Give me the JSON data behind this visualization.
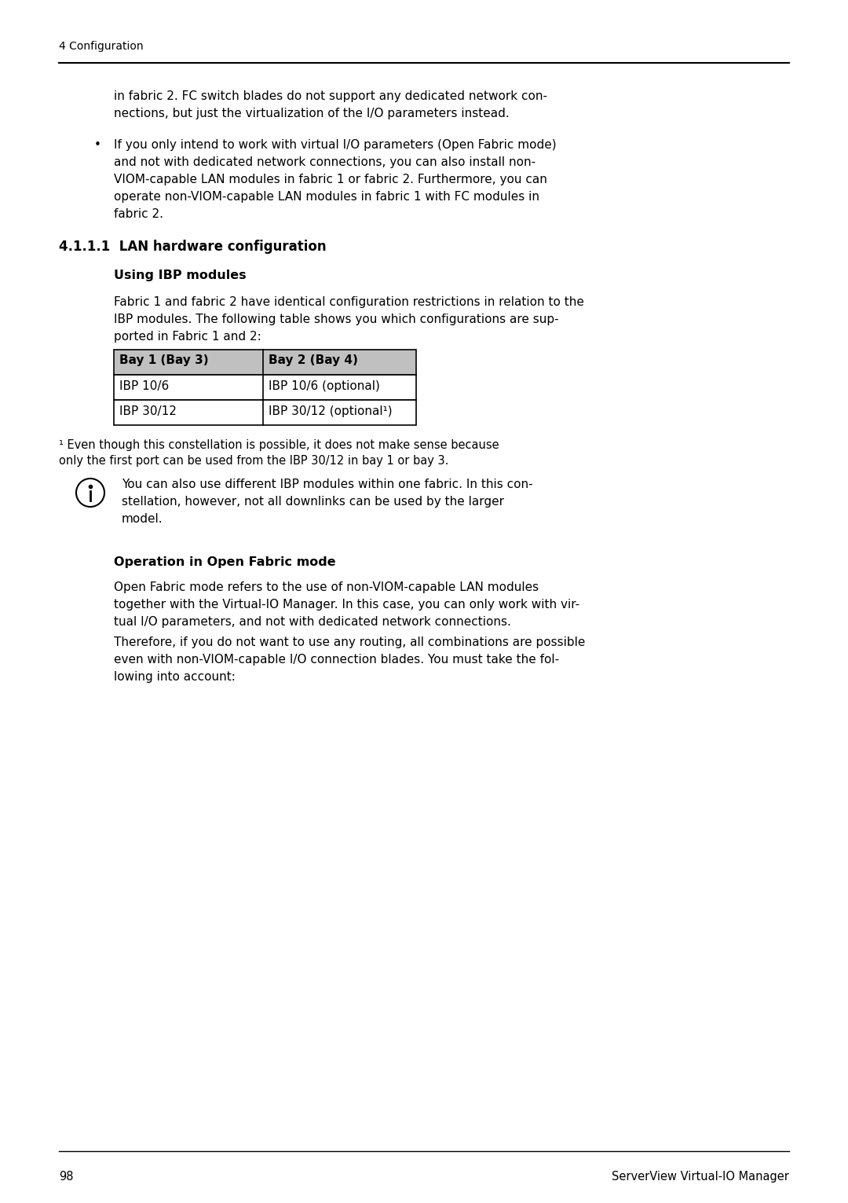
{
  "bg_color": "#ffffff",
  "header_text": "4 Configuration",
  "footer_page": "98",
  "footer_right": "ServerView Virtual-IO Manager",
  "para1_line1": "in fabric 2. FC switch blades do not support any dedicated network con-",
  "para1_line2": "nections, but just the virtualization of the I/O parameters instead.",
  "bullet_line1": "If you only intend to work with virtual I/O parameters (Open Fabric mode)",
  "bullet_line2": "and not with dedicated network connections, you can also install non-",
  "bullet_line3": "VIOM-capable LAN modules in fabric 1 or fabric 2. Furthermore, you can",
  "bullet_line4": "operate non-VIOM-capable LAN modules in fabric 1 with FC modules in",
  "bullet_line5": "fabric 2.",
  "section_heading": "4.1.1.1  LAN hardware configuration",
  "subsection_heading": "Using IBP modules",
  "body1_line1": "Fabric 1 and fabric 2 have identical configuration restrictions in relation to the",
  "body1_line2": "IBP modules. The following table shows you which configurations are sup-",
  "body1_line3": "ported in Fabric 1 and 2:",
  "table_col1_header": "Bay 1 (Bay 3)",
  "table_col2_header": "Bay 2 (Bay 4)",
  "table_row1_col1": "IBP 10/6",
  "table_row1_col2": "IBP 10/6 (optional)",
  "table_row2_col1": "IBP 30/12",
  "table_row2_col2": "IBP 30/12 (optional¹)",
  "fn_line1": "¹ Even though this constellation is possible, it does not make sense because",
  "fn_line2": "only the first port can be used from the IBP 30/12 in bay 1 or bay 3.",
  "info_line1": "You can also use different IBP modules within one fabric. In this con-",
  "info_line2": "stellation, however, not all downlinks can be used by the larger",
  "info_line3": "model.",
  "subsection2_heading": "Operation in Open Fabric mode",
  "body2_line1": "Open Fabric mode refers to the use of non-VIOM-capable LAN modules",
  "body2_line2": "together with the Virtual-IO Manager. In this case, you can only work with vir-",
  "body2_line3": "tual I/O parameters, and not with dedicated network connections.",
  "body3_line1": "Therefore, if you do not want to use any routing, all combinations are possible",
  "body3_line2": "even with non-VIOM-capable I/O connection blades. You must take the fol-",
  "body3_line3": "lowing into account:"
}
